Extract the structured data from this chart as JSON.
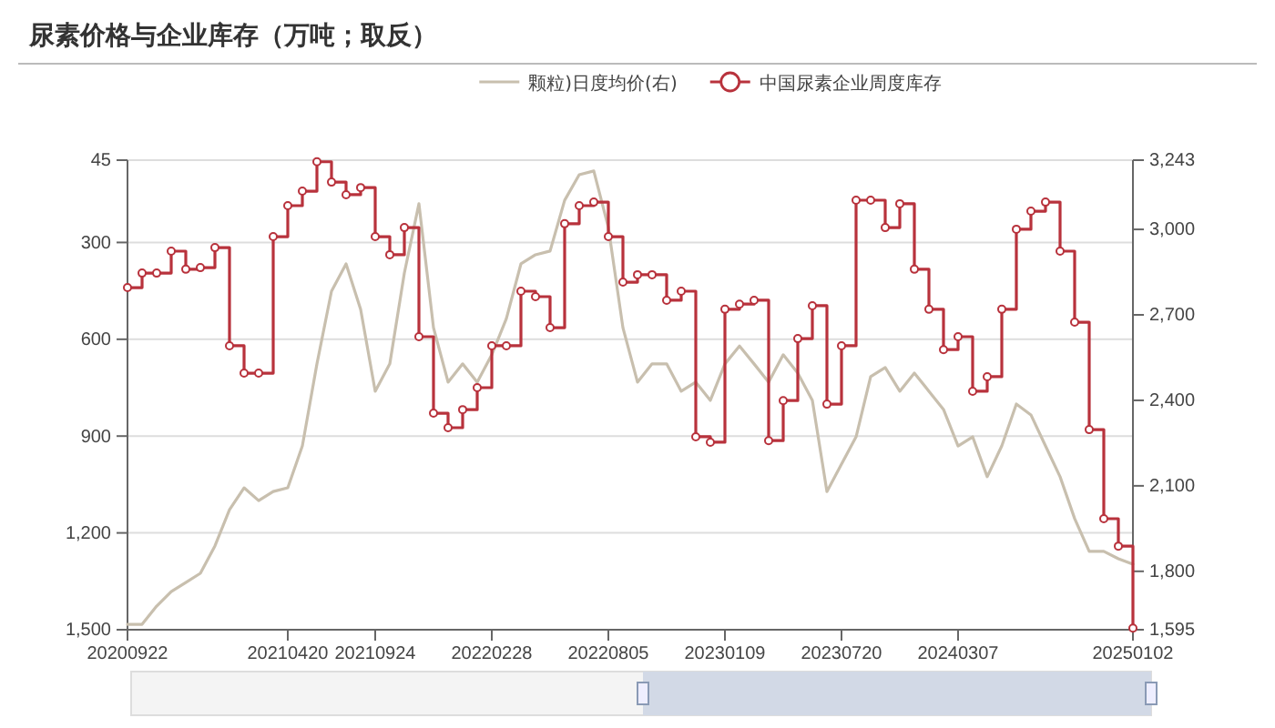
{
  "chart_data": {
    "type": "line",
    "title": "尿素价格与企业库存（万吨；取反）",
    "categories": [
      "20200922",
      null,
      null,
      null,
      null,
      null,
      null,
      null,
      null,
      null,
      null,
      "20210420",
      null,
      null,
      null,
      null,
      null,
      "20210924",
      null,
      null,
      null,
      null,
      null,
      null,
      null,
      "20220228",
      null,
      null,
      null,
      null,
      null,
      null,
      null,
      "20220805",
      null,
      null,
      null,
      null,
      null,
      null,
      null,
      "20230109",
      null,
      null,
      null,
      null,
      null,
      null,
      null,
      "20230720",
      null,
      null,
      null,
      null,
      null,
      null,
      null,
      "20240307",
      null,
      null,
      null,
      null,
      null,
      null,
      null,
      null,
      null,
      null,
      null,
      "20250102"
    ],
    "series": [
      {
        "name": "颗粒)日度均价(右)",
        "type": "line",
        "axis": "y2",
        "color": "#c8bfae",
        "values": [
          1614,
          1614,
          1678,
          1729,
          1761,
          1793,
          1889,
          2016,
          2093,
          2048,
          2080,
          2093,
          2240,
          2528,
          2783,
          2879,
          2719,
          2432,
          2528,
          2847,
          3090,
          2655,
          2464,
          2528,
          2464,
          2560,
          2687,
          2879,
          2911,
          2924,
          3102,
          3192,
          3205,
          3007,
          2655,
          2464,
          2528,
          2528,
          2432,
          2464,
          2400,
          2528,
          2591,
          2528,
          2464,
          2560,
          2496,
          2400,
          2080,
          2176,
          2272,
          2483,
          2515,
          2432,
          2496,
          2432,
          2368,
          2240,
          2272,
          2132,
          2240,
          2387,
          2349,
          2240,
          2132,
          1985,
          1870,
          1870,
          1844,
          1825
        ]
      },
      {
        "name": "中国尿素企业周度库存",
        "type": "step",
        "marker": "circle",
        "color": "#b8323c",
        "values": [
          440,
          395,
          395,
          327,
          383,
          378,
          316,
          620,
          705,
          705,
          282,
          186,
          141,
          50,
          113,
          152,
          130,
          282,
          338,
          254,
          592,
          829,
          874,
          818,
          750,
          620,
          620,
          451,
          468,
          564,
          242,
          186,
          175,
          282,
          423,
          400,
          400,
          479,
          451,
          902,
          919,
          507,
          491,
          479,
          914,
          790,
          598,
          496,
          801,
          620,
          169,
          169,
          254,
          180,
          383,
          507,
          632,
          592,
          761,
          716,
          507,
          259,
          203,
          175,
          327,
          547,
          880,
          1156,
          1241,
          1495
        ]
      }
    ],
    "ylim": [
      1500,
      45
    ],
    "yticks": [
      45,
      300,
      600,
      900,
      {
        "value": 1200,
        "label": "1,200"
      },
      {
        "value": 1500,
        "label": "1,500"
      }
    ],
    "y2lim": [
      1595,
      3243
    ],
    "y2ticks": [
      {
        "value": 3243,
        "label": "3,243"
      },
      {
        "value": 3000,
        "label": "3,000"
      },
      {
        "value": 2700,
        "label": "2,700"
      },
      {
        "value": 2400,
        "label": "2,400"
      },
      {
        "value": 2100,
        "label": "2,100"
      },
      {
        "value": 1800,
        "label": "1,800"
      },
      {
        "value": 1595,
        "label": "1,595"
      }
    ],
    "grid": "y",
    "legend": "top"
  }
}
